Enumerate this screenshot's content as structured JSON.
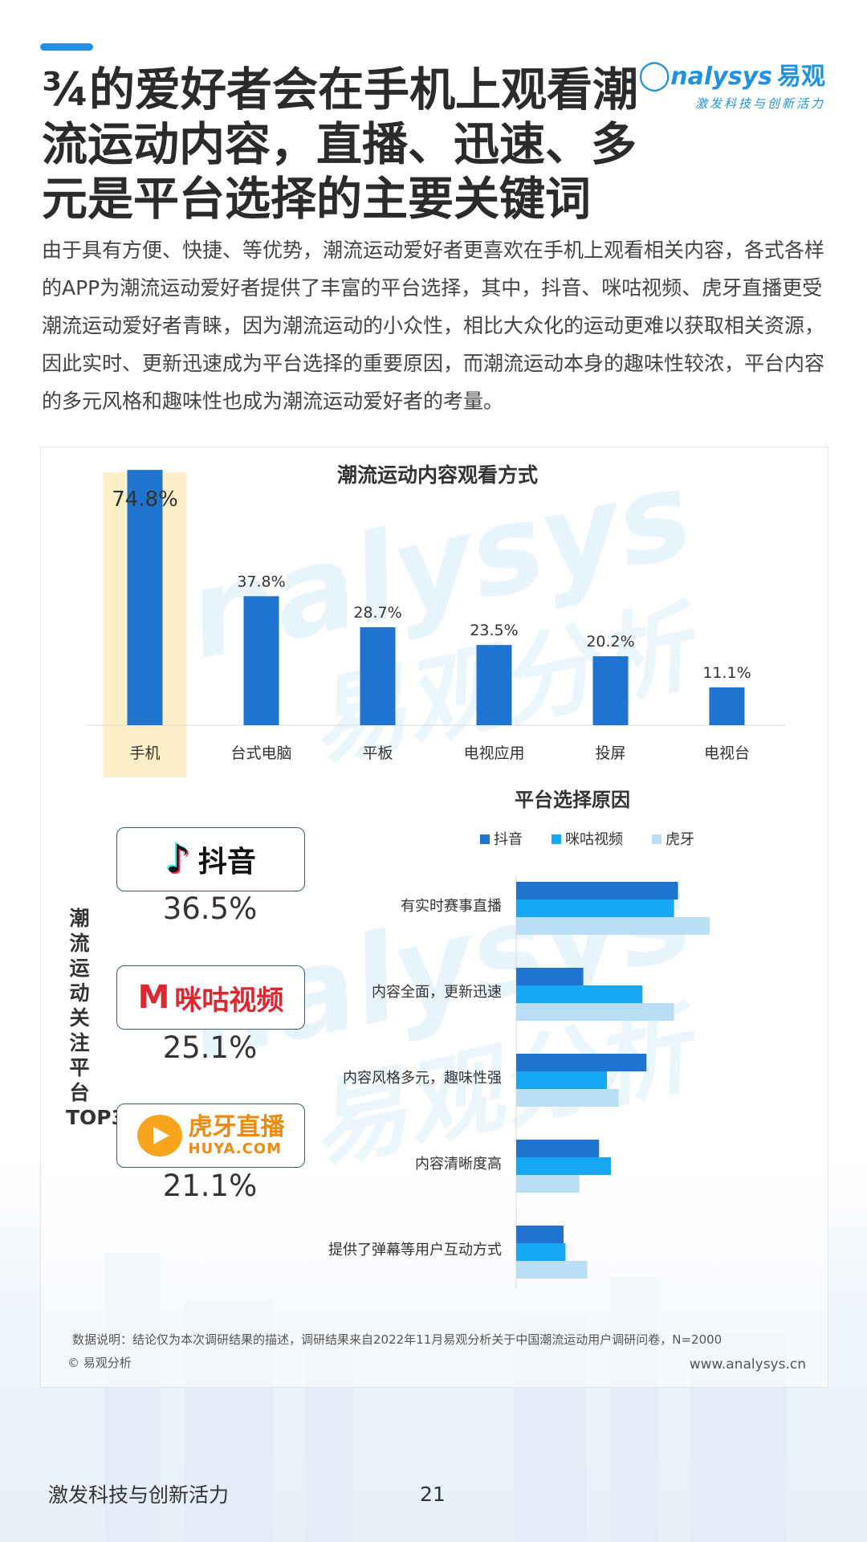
{
  "header": {
    "title": "¾的爱好者会在手机上观看潮流运动内容，直播、迅速、多元是平台选择的主要关键词",
    "logo_brand": "nalysys",
    "logo_cn": "易观",
    "logo_slogan": "激发科技与创新活力"
  },
  "intro": "由于具有方便、快捷、等优势，潮流运动爱好者更喜欢在手机上观看相关内容，各式各样的APP为潮流运动爱好者提供了丰富的平台选择，其中，抖音、咪咕视频、虎牙直播更受潮流运动爱好者青睐，因为潮流运动的小众性，相比大众化的运动更难以获取相关资源，因此实时、更新迅速成为平台选择的重要原因，而潮流运动本身的趣味性较浓，平台内容的多元风格和趣味性也成为潮流运动爱好者的考量。",
  "watermark": {
    "en": "nalysys",
    "cn": "易观分析"
  },
  "top3": {
    "title": "潮流运动关注平台TOP3",
    "platforms": [
      {
        "name": "抖音",
        "value": "36.5%"
      },
      {
        "name": "咪咕视频",
        "value": "25.1%"
      },
      {
        "name": "虎牙直播",
        "sub": "HUYA.COM",
        "value": "21.1%"
      }
    ]
  },
  "chart_data": [
    {
      "type": "bar",
      "title": "潮流运动内容观看方式",
      "categories": [
        "手机",
        "台式电脑",
        "平板",
        "电视应用",
        "投屏",
        "电视台"
      ],
      "values": [
        74.8,
        37.8,
        28.7,
        23.5,
        20.2,
        11.1
      ],
      "value_labels": [
        "74.8%",
        "37.8%",
        "28.7%",
        "23.5%",
        "20.2%",
        "11.1%"
      ],
      "highlight_category": "手机",
      "ylim": [
        0,
        80
      ],
      "grid": false,
      "colors": {
        "bar": "#1f74d1",
        "highlight": "#fdefc8"
      }
    },
    {
      "type": "bar",
      "orientation": "horizontal",
      "title": "平台选择原因",
      "categories": [
        "有实时赛事直播",
        "内容全面，更新迅速",
        "内容风格多元，趣味性强",
        "内容清晰度高",
        "提供了弹幕等用户互动方式"
      ],
      "series": [
        {
          "name": "抖音",
          "color": "#1f74d1",
          "values": [
            41,
            17,
            33,
            21,
            12
          ]
        },
        {
          "name": "咪咕视频",
          "color": "#16a8f5",
          "values": [
            40,
            32,
            23,
            24,
            12.5
          ]
        },
        {
          "name": "虎牙",
          "color": "#b9def5",
          "values": [
            49,
            40,
            26,
            16,
            18
          ]
        }
      ],
      "xlim": [
        0,
        60
      ],
      "legend": "top",
      "grid": false
    }
  ],
  "footer": {
    "note": "数据说明：结论仅为本次调研结果的描述，调研结果来自2022年11月易观分析关于中国潮流运动用户调研问卷，N=2000",
    "copyright": "© 易观分析",
    "site": "www.analysys.cn",
    "slogan": "激发科技与创新活力",
    "page": "21"
  }
}
